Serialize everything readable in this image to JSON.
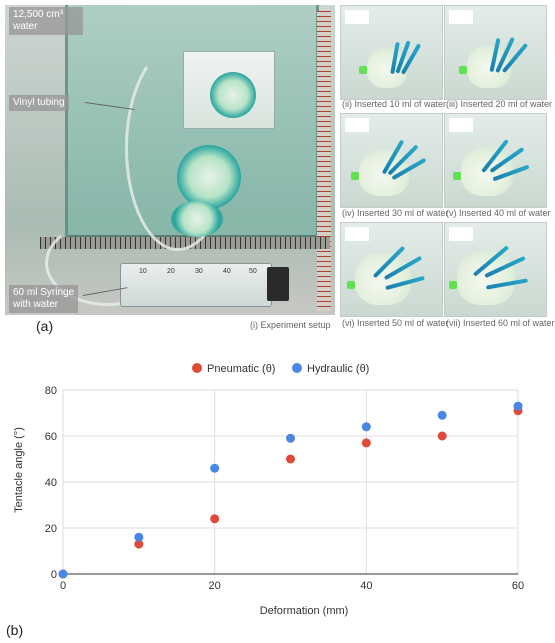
{
  "figure": {
    "panel_a_label": "(a)",
    "panel_b_label": "(b)",
    "photo_labels": {
      "volume": "12,500 cm³\nwater",
      "tubing": "Vinyl tubing",
      "syringe": "60 ml Syringe\nwith water"
    },
    "syringe_ticks": [
      "10",
      "20",
      "30",
      "40",
      "50"
    ],
    "captions": [
      "(i) Experiment setup",
      "(ii) Inserted 10 ml of water",
      "(iii) Inserted 20 ml of water",
      "(iv) Inserted 30 ml of water",
      "(v) Inserted 40 ml of water",
      "(vi) Inserted 50 ml of water",
      "(vii) Inserted 60 ml of water"
    ]
  },
  "chart_data": {
    "type": "scatter",
    "xlabel": "Deformation (mm)",
    "ylabel": "Tentacle angle (°)",
    "xlim": [
      0,
      60
    ],
    "ylim": [
      0,
      80
    ],
    "xticks": [
      0,
      20,
      40,
      60
    ],
    "yticks": [
      0,
      20,
      40,
      60,
      80
    ],
    "grid": true,
    "legend_position": "top-center",
    "x": [
      0,
      10,
      20,
      30,
      40,
      50,
      60
    ],
    "series": [
      {
        "name": "Pneumatic (θ)",
        "color": "#e04a3a",
        "values": [
          0,
          13,
          24,
          50,
          57,
          60,
          71
        ]
      },
      {
        "name": "Hydraulic (θ)",
        "color": "#4a86e8",
        "values": [
          0,
          16,
          46,
          59,
          64,
          69,
          73
        ]
      }
    ]
  }
}
